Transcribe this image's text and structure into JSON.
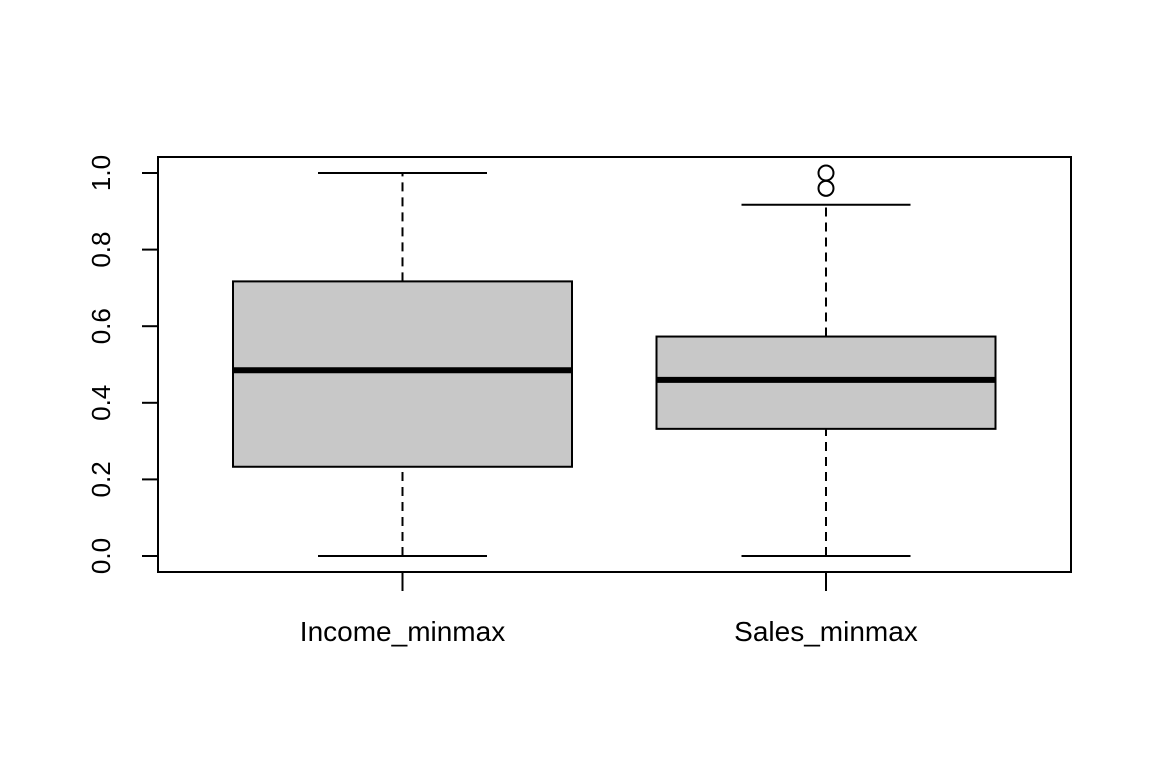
{
  "chart_data": {
    "type": "boxplot",
    "title": "",
    "xlabel": "",
    "ylabel": "",
    "ylim": [
      -0.04,
      1.04
    ],
    "yticks": [
      0.0,
      0.2,
      0.4,
      0.6,
      0.8,
      1.0
    ],
    "ytick_labels": [
      "0.0",
      "0.2",
      "0.4",
      "0.6",
      "0.8",
      "1.0"
    ],
    "categories": [
      "Income_minmax",
      "Sales_minmax"
    ],
    "series": [
      {
        "name": "Income_minmax",
        "whisker_low": 0.0,
        "q1": 0.233,
        "median": 0.485,
        "q3": 0.717,
        "whisker_high": 1.0,
        "outliers": []
      },
      {
        "name": "Sales_minmax",
        "whisker_low": 0.0,
        "q1": 0.332,
        "median": 0.46,
        "q3": 0.573,
        "whisker_high": 0.917,
        "outliers": [
          0.96,
          1.0
        ]
      }
    ],
    "colors": {
      "box_fill": "#c8c8c8",
      "stroke": "#000000"
    },
    "grid": false
  }
}
